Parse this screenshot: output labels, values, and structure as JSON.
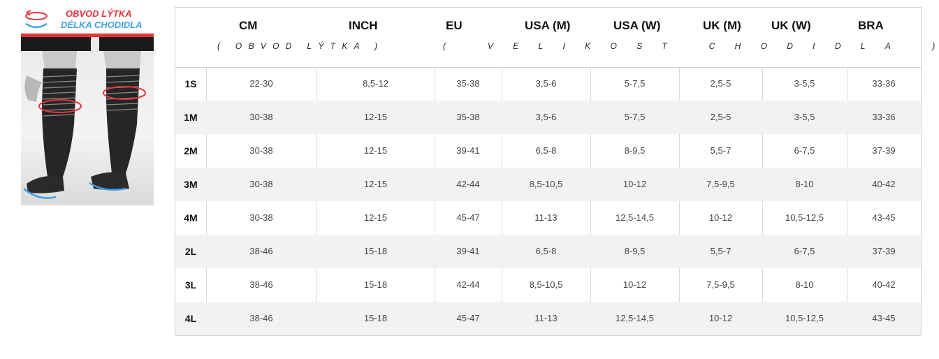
{
  "legend": {
    "calf_label": "OBVOD LÝTKA",
    "foot_label": "DÉLKA CHODIDLA",
    "calf_color": "#e8333b",
    "foot_color": "#3fa2e6"
  },
  "table": {
    "headers": [
      "CM",
      "INCH",
      "EU",
      "USA (M)",
      "USA (W)",
      "UK (M)",
      "UK (W)",
      "BRA"
    ],
    "subheader_calf": "( OBVOD LÝTKA )",
    "subheader_foot": "( VELIKOST CHODIDLA )",
    "rows": [
      {
        "size": "1S",
        "cm": "22-30",
        "inch": "8,5-12",
        "eu": "35-38",
        "usa_m": "3,5-6",
        "usa_w": "5-7,5",
        "uk_m": "2,5-5",
        "uk_w": "3-5,5",
        "bra": "33-36"
      },
      {
        "size": "1M",
        "cm": "30-38",
        "inch": "12-15",
        "eu": "35-38",
        "usa_m": "3,5-6",
        "usa_w": "5-7,5",
        "uk_m": "2,5-5",
        "uk_w": "3-5,5",
        "bra": "33-36"
      },
      {
        "size": "2M",
        "cm": "30-38",
        "inch": "12-15",
        "eu": "39-41",
        "usa_m": "6,5-8",
        "usa_w": "8-9,5",
        "uk_m": "5,5-7",
        "uk_w": "6-7,5",
        "bra": "37-39"
      },
      {
        "size": "3M",
        "cm": "30-38",
        "inch": "12-15",
        "eu": "42-44",
        "usa_m": "8,5-10,5",
        "usa_w": "10-12",
        "uk_m": "7,5-9,5",
        "uk_w": "8-10",
        "bra": "40-42"
      },
      {
        "size": "4M",
        "cm": "30-38",
        "inch": "12-15",
        "eu": "45-47",
        "usa_m": "11-13",
        "usa_w": "12,5-14,5",
        "uk_m": "10-12",
        "uk_w": "10,5-12,5",
        "bra": "43-45"
      },
      {
        "size": "2L",
        "cm": "38-46",
        "inch": "15-18",
        "eu": "39-41",
        "usa_m": "6,5-8",
        "usa_w": "8-9,5",
        "uk_m": "5,5-7",
        "uk_w": "6-7,5",
        "bra": "37-39"
      },
      {
        "size": "3L",
        "cm": "38-46",
        "inch": "15-18",
        "eu": "42-44",
        "usa_m": "8,5-10,5",
        "usa_w": "10-12",
        "uk_m": "7,5-9,5",
        "uk_w": "8-10",
        "bra": "40-42"
      },
      {
        "size": "4L",
        "cm": "38-46",
        "inch": "15-18",
        "eu": "45-47",
        "usa_m": "11-13",
        "usa_w": "12,5-14,5",
        "uk_m": "10-12",
        "uk_w": "10,5-12,5",
        "bra": "43-45"
      }
    ]
  }
}
